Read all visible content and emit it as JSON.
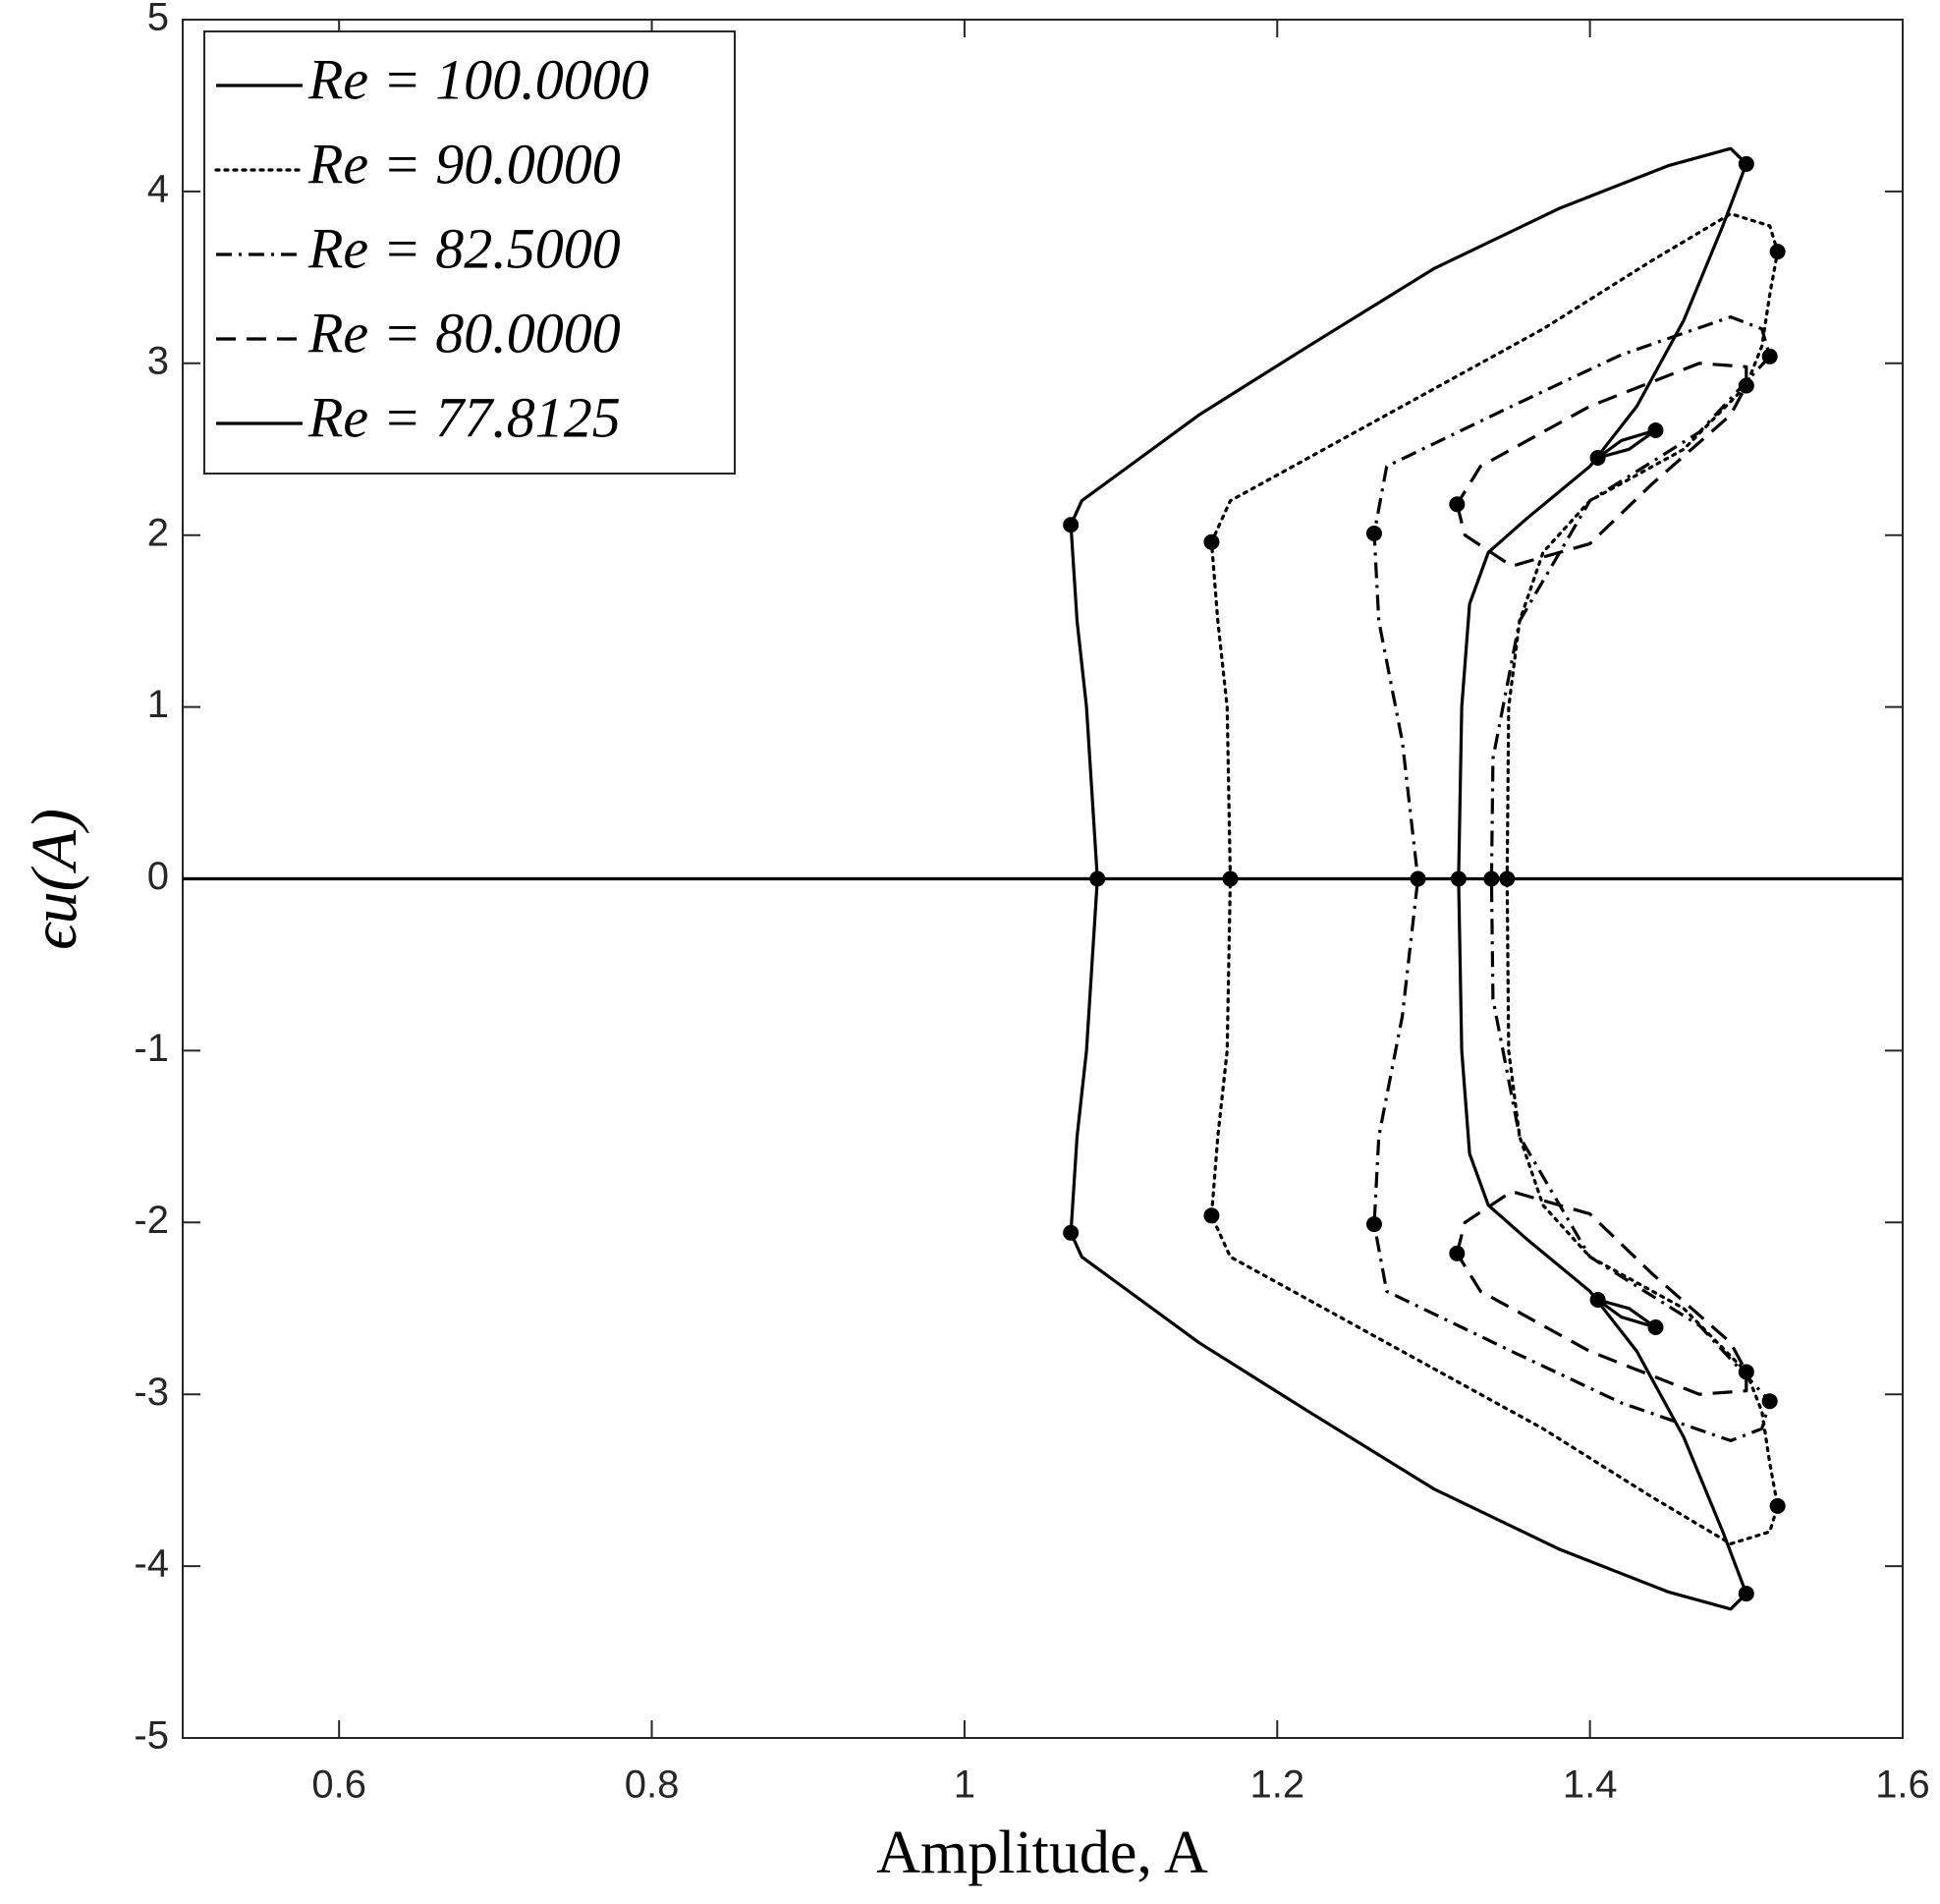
{
  "chart_data": {
    "type": "line",
    "xlabel": "Amplitude, A",
    "ylabel": "ϵu(A)",
    "xlim": [
      0.5,
      1.6
    ],
    "ylim": [
      -5,
      5
    ],
    "xticks": [
      0.6,
      0.8,
      1,
      1.2,
      1.4,
      1.6
    ],
    "yticks": [
      -5,
      -4,
      -3,
      -2,
      -1,
      0,
      1,
      2,
      3,
      4,
      5
    ],
    "legend": "upper left",
    "series": [
      {
        "name": "Re = 100.0000",
        "color": "#000000",
        "dash": "solid",
        "x": [
          1.316,
          1.318,
          1.323,
          1.335,
          1.36,
          1.4,
          1.43,
          1.46,
          1.485,
          1.5,
          1.49,
          1.45,
          1.38,
          1.3,
          1.22,
          1.15,
          1.09,
          1.075,
          1.068,
          1.072,
          1.078,
          1.085,
          1.078,
          1.072,
          1.068,
          1.075,
          1.09,
          1.15,
          1.22,
          1.3,
          1.38,
          1.45,
          1.49,
          1.5,
          1.485,
          1.46,
          1.43,
          1.4,
          1.36,
          1.335,
          1.323,
          1.318,
          1.316
        ],
        "y": [
          0,
          1.0,
          1.6,
          1.9,
          2.1,
          2.4,
          2.75,
          3.25,
          3.8,
          4.16,
          4.25,
          4.15,
          3.9,
          3.55,
          3.1,
          2.7,
          2.3,
          2.2,
          2.06,
          1.5,
          1.0,
          0,
          -1.0,
          -1.5,
          -2.06,
          -2.2,
          -2.3,
          -2.7,
          -3.1,
          -3.55,
          -3.9,
          -4.15,
          -4.25,
          -4.16,
          -3.8,
          -3.25,
          -2.75,
          -2.4,
          -2.1,
          -1.9,
          -1.6,
          -1.0,
          0
        ]
      },
      {
        "name": "Re = 90.0000",
        "color": "#000000",
        "dash": "dotted",
        "x": [
          1.347,
          1.348,
          1.355,
          1.37,
          1.4,
          1.46,
          1.5,
          1.51,
          1.515,
          1.52,
          1.515,
          1.49,
          1.44,
          1.37,
          1.28,
          1.2,
          1.17,
          1.158,
          1.162,
          1.168,
          1.17,
          1.168,
          1.162,
          1.158,
          1.17,
          1.2,
          1.28,
          1.37,
          1.44,
          1.49,
          1.515,
          1.52,
          1.515,
          1.51,
          1.5,
          1.46,
          1.4,
          1.37,
          1.355,
          1.348,
          1.347
        ],
        "y": [
          0,
          1.0,
          1.5,
          1.9,
          2.2,
          2.5,
          2.87,
          3.1,
          3.4,
          3.65,
          3.8,
          3.87,
          3.6,
          3.2,
          2.75,
          2.35,
          2.2,
          1.96,
          1.5,
          1.0,
          0,
          -1.0,
          -1.5,
          -1.96,
          -2.2,
          -2.35,
          -2.75,
          -3.2,
          -3.6,
          -3.87,
          -3.8,
          -3.65,
          -3.4,
          -3.1,
          -2.87,
          -2.5,
          -2.2,
          -1.9,
          -1.5,
          -1.0,
          0
        ]
      },
      {
        "name": "Re = 82.5000",
        "color": "#000000",
        "dash": "dashdot",
        "x": [
          1.337,
          1.338,
          1.355,
          1.4,
          1.47,
          1.515,
          1.51,
          1.49,
          1.42,
          1.35,
          1.27,
          1.262,
          1.265,
          1.28,
          1.29,
          1.28,
          1.265,
          1.262,
          1.27,
          1.35,
          1.42,
          1.49,
          1.51,
          1.515,
          1.47,
          1.4,
          1.355,
          1.338,
          1.337
        ],
        "y": [
          0,
          0.7,
          1.5,
          2.2,
          2.6,
          3.04,
          3.2,
          3.27,
          3.05,
          2.75,
          2.4,
          2.01,
          1.5,
          0.8,
          0,
          -0.8,
          -1.5,
          -2.01,
          -2.4,
          -2.75,
          -3.05,
          -3.27,
          -3.2,
          -3.04,
          -2.6,
          -2.2,
          -1.5,
          -0.7,
          0
        ]
      },
      {
        "name": "Re = 80.0000",
        "color": "#000000",
        "dash": "dashed",
        "x": [
          1.315,
          1.32,
          1.35,
          1.4,
          1.44,
          1.49,
          1.5,
          1.5,
          1.47,
          1.4,
          1.33,
          1.315,
          null,
          1.315,
          1.32,
          1.35,
          1.4,
          1.44,
          1.49,
          1.5,
          1.5,
          1.47,
          1.4,
          1.33,
          1.315
        ],
        "y": [
          2.18,
          2.0,
          1.82,
          1.95,
          2.3,
          2.7,
          2.87,
          2.98,
          3.0,
          2.75,
          2.4,
          2.18,
          null,
          -2.18,
          -2.0,
          -1.82,
          -1.95,
          -2.3,
          -2.7,
          -2.87,
          -2.98,
          -3.0,
          -2.75,
          -2.4,
          -2.18
        ]
      },
      {
        "name": "Re = 77.8125",
        "color": "#000000",
        "dash": "solid",
        "x": [
          1.405,
          1.42,
          1.442,
          1.425,
          1.405,
          null,
          1.405,
          1.42,
          1.442,
          1.425,
          1.405
        ],
        "y": [
          2.45,
          2.55,
          2.61,
          2.5,
          2.45,
          null,
          -2.45,
          -2.55,
          -2.61,
          -2.5,
          -2.45
        ]
      },
      {
        "color": "#000000",
        "dash": "solid",
        "x": [
          0.5,
          1.6
        ],
        "y": [
          0,
          0
        ]
      }
    ],
    "points": {
      "color": "#000000",
      "x": [
        1.068,
        1.068,
        1.085,
        1.5,
        1.5,
        1.158,
        1.158,
        1.17,
        1.52,
        1.52,
        1.262,
        1.262,
        1.29,
        1.515,
        1.515,
        1.316,
        1.337,
        1.347,
        1.315,
        1.315,
        1.5,
        1.5,
        1.405,
        1.405,
        1.442,
        1.442
      ],
      "y": [
        2.06,
        -2.06,
        0,
        4.16,
        -4.16,
        1.96,
        -1.96,
        0,
        3.65,
        -3.65,
        2.01,
        -2.01,
        0,
        3.04,
        -3.04,
        0,
        0,
        0,
        2.18,
        -2.18,
        2.87,
        -2.87,
        2.45,
        -2.45,
        2.61,
        -2.61
      ]
    }
  }
}
